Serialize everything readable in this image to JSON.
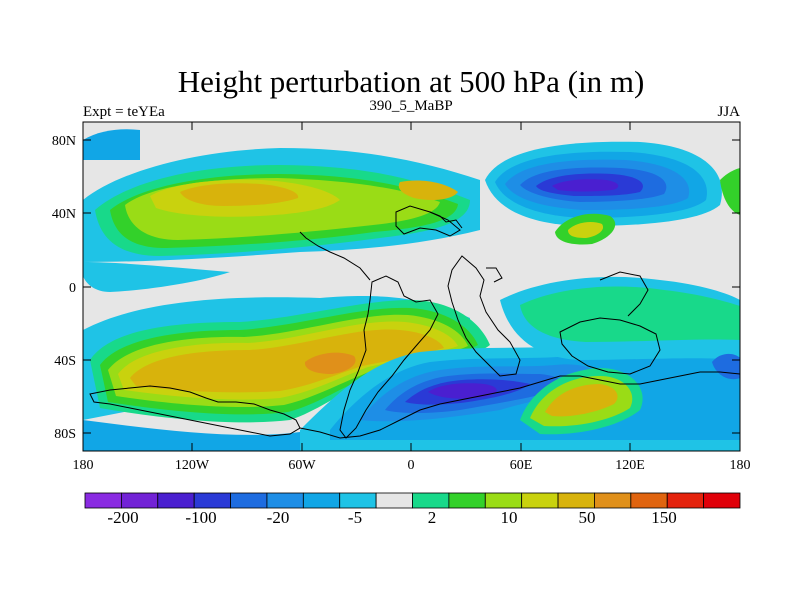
{
  "title": "Height perturbation at 500 hPa (in m)",
  "left_string": "Expt = teYEa",
  "center_string": "390_5_MaBP",
  "right_string": "JJA",
  "lat_labels": [
    "80N",
    "40N",
    "0",
    "40S",
    "80S"
  ],
  "lon_labels": [
    "180",
    "120W",
    "60W",
    "0",
    "60E",
    "120E",
    "180"
  ],
  "colors": {
    "c_neg200": "#8a2be2",
    "c_neg150": "#7222d6",
    "c_neg100": "#4a1fd0",
    "c_neg50": "#2a3ad6",
    "c_neg20": "#1e6ce0",
    "c_neg10": "#1e8ee6",
    "c_neg5": "#11a6e6",
    "c_neg2": "#1fc3e6",
    "c_zero": "#e6e6e6",
    "c_pos2": "#18d98a",
    "c_pos5": "#33d12a",
    "c_pos10": "#9adc16",
    "c_pos20": "#c9d20e",
    "c_pos50": "#d8b30c",
    "c_pos100": "#e0901a",
    "c_pos150": "#e0640f",
    "c_pos200": "#e4220c",
    "c_pos300": "#e00009",
    "coast": "#000000"
  },
  "colorbar": {
    "boxes": [
      "#8a2be2",
      "#7222d6",
      "#4a1fd0",
      "#2a3ad6",
      "#1e6ce0",
      "#1e8ee6",
      "#11a6e6",
      "#1fc3e6",
      "#e6e6e6",
      "#18d98a",
      "#33d12a",
      "#9adc16",
      "#c9d20e",
      "#d8b30c",
      "#e0901a",
      "#e0640f",
      "#e4220c",
      "#e00009"
    ],
    "labels": [
      "-200",
      "-100",
      "-20",
      "-5",
      "2",
      "10",
      "50",
      "150"
    ]
  }
}
